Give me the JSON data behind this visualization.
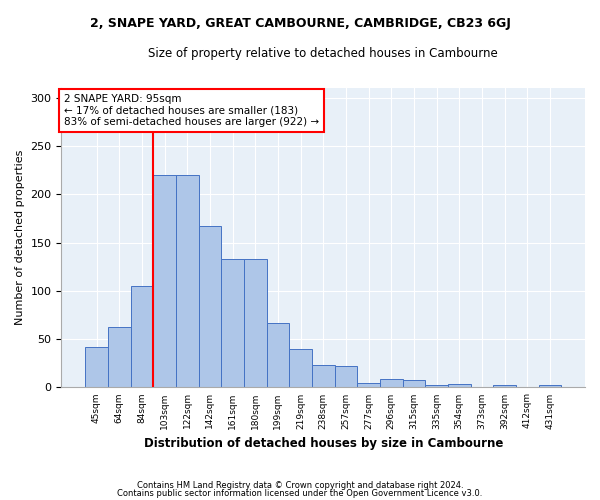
{
  "title1": "2, SNAPE YARD, GREAT CAMBOURNE, CAMBRIDGE, CB23 6GJ",
  "title2": "Size of property relative to detached houses in Cambourne",
  "xlabel": "Distribution of detached houses by size in Cambourne",
  "ylabel": "Number of detached properties",
  "categories": [
    "45sqm",
    "64sqm",
    "84sqm",
    "103sqm",
    "122sqm",
    "142sqm",
    "161sqm",
    "180sqm",
    "199sqm",
    "219sqm",
    "238sqm",
    "257sqm",
    "277sqm",
    "296sqm",
    "315sqm",
    "335sqm",
    "354sqm",
    "373sqm",
    "392sqm",
    "412sqm",
    "431sqm"
  ],
  "values": [
    42,
    63,
    105,
    220,
    220,
    167,
    133,
    133,
    67,
    40,
    23,
    22,
    5,
    9,
    8,
    3,
    4,
    0,
    3,
    0,
    2
  ],
  "bar_color": "#aec6e8",
  "bar_edge_color": "#4472c4",
  "background_color": "#e8f0f8",
  "annotation_line1": "2 SNAPE YARD: 95sqm",
  "annotation_line2": "← 17% of detached houses are smaller (183)",
  "annotation_line3": "83% of semi-detached houses are larger (922) →",
  "annotation_box_color": "white",
  "annotation_box_edge": "red",
  "property_line_x": 2.5,
  "property_line_color": "red",
  "footer1": "Contains HM Land Registry data © Crown copyright and database right 2024.",
  "footer2": "Contains public sector information licensed under the Open Government Licence v3.0.",
  "ylim": [
    0,
    310
  ],
  "yticks": [
    0,
    50,
    100,
    150,
    200,
    250,
    300
  ]
}
